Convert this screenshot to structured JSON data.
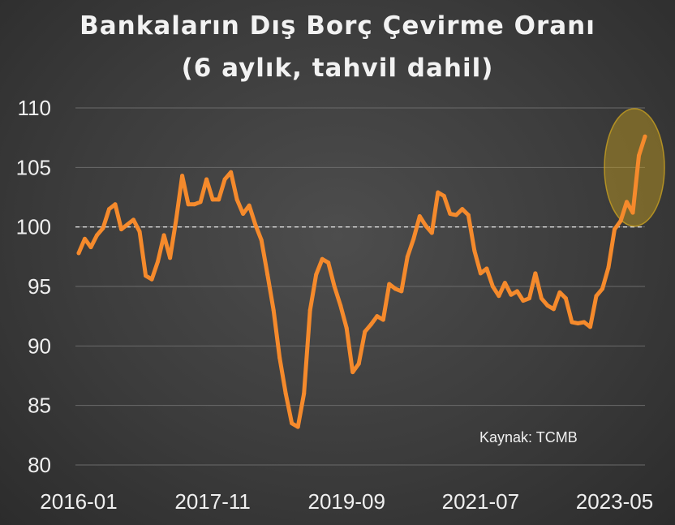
{
  "chart_data": {
    "type": "line",
    "title": "Bankaların Dış Borç Çevirme Oranı",
    "subtitle": "(6 aylık, tahvil dahil)",
    "source": "Kaynak: TCMB",
    "xlabel": "",
    "ylabel": "",
    "ylim": [
      80,
      110
    ],
    "yticks": [
      80,
      85,
      90,
      95,
      100,
      105,
      110
    ],
    "xticks": [
      "2016-01",
      "2017-11",
      "2019-09",
      "2021-07",
      "2023-05"
    ],
    "reference_line": 100,
    "grid": true,
    "x_start": "2016-01",
    "x_end": "2023-10",
    "highlight": {
      "from": "2023-06",
      "to": "2023-10",
      "color": "#c8a020"
    },
    "series": [
      {
        "color": "#f58a2c",
        "values": [
          97.8,
          99.0,
          98.3,
          99.3,
          99.9,
          101.5,
          101.9,
          99.8,
          100.2,
          100.6,
          99.6,
          95.9,
          95.6,
          97.1,
          99.3,
          97.4,
          100.6,
          104.3,
          101.9,
          101.9,
          102.1,
          104.0,
          102.3,
          102.3,
          104.0,
          104.6,
          102.3,
          101.1,
          101.8,
          100.2,
          98.9,
          96.0,
          93.0,
          89.0,
          86.0,
          83.5,
          83.2,
          86.0,
          93.0,
          96.0,
          97.3,
          97.0,
          95.0,
          93.4,
          91.5,
          87.8,
          88.5,
          91.2,
          91.8,
          92.5,
          92.2,
          95.2,
          94.8,
          94.6,
          97.5,
          99.0,
          100.9,
          100.1,
          99.5,
          102.9,
          102.6,
          101.1,
          101.0,
          101.5,
          101.0,
          98.0,
          96.1,
          96.5,
          95.0,
          94.2,
          95.3,
          94.3,
          94.6,
          93.8,
          94.0,
          96.1,
          94.0,
          93.4,
          93.1,
          94.5,
          94.0,
          92.0,
          91.9,
          92.0,
          91.6,
          94.2,
          94.8,
          96.6,
          99.8,
          100.5,
          102.1,
          101.2,
          106.0,
          107.6
        ]
      }
    ]
  }
}
